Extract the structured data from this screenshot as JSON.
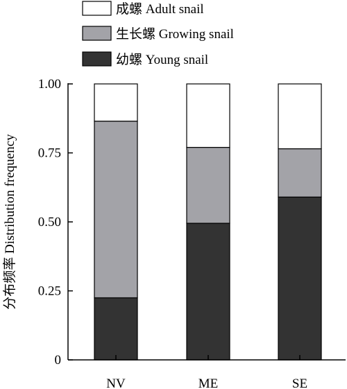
{
  "chart_data": {
    "type": "bar",
    "stacked": true,
    "categories": [
      "NV",
      "ME",
      "SE"
    ],
    "series": [
      {
        "name": "幼螺 Young snail",
        "values": [
          0.225,
          0.495,
          0.59
        ],
        "color": "#333333"
      },
      {
        "name": "生长螺 Growing snail",
        "values": [
          0.64,
          0.275,
          0.175
        ],
        "color": "#a3a3a8"
      },
      {
        "name": "成螺 Adult snail",
        "values": [
          0.135,
          0.23,
          0.235
        ],
        "color": "#ffffff"
      }
    ],
    "ylabel": "分布频率 Distribution frequency",
    "xlabel": "",
    "ylim": [
      0,
      1
    ],
    "yticks": [
      "0",
      "0.25",
      "0.50",
      "0.75",
      "1.00"
    ],
    "ytick_values": [
      0,
      0.25,
      0.5,
      0.75,
      1
    ],
    "legend_position": "top",
    "grid": false
  }
}
